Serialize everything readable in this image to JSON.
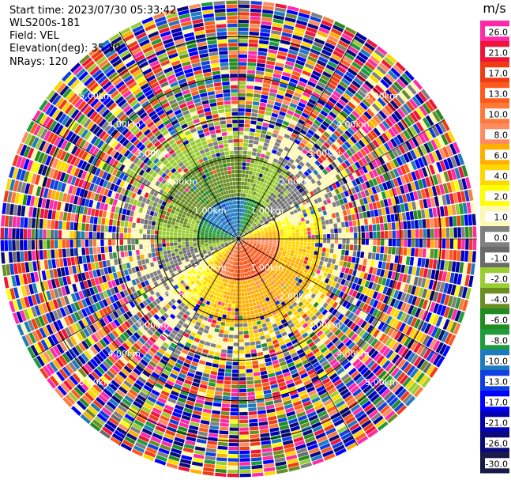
{
  "header": {
    "start_time": "Start time: 2023/07/30 05:33:42",
    "instrument": "WLS200s-181",
    "field": "Field: VEL",
    "elevation": "Elevation(deg): 35.30",
    "nrays": "NRays: 120"
  },
  "chart_data": {
    "type": "heatmap",
    "projection": "polar-ppi",
    "field": "VEL",
    "units": "m/s",
    "n_rays": 120,
    "elevation_deg": 35.3,
    "range_rings_km": [
      1,
      2,
      3,
      4,
      5
    ],
    "ring_labels": [
      "1.00km",
      "2.00km",
      "3.00km",
      "4.00km",
      "5.00km"
    ],
    "colorbar": {
      "title": "m/s",
      "ticks": [
        "26.0",
        "21.0",
        "17.0",
        "13.0",
        "10.0",
        "8.0",
        "6.0",
        "4.0",
        "2.0",
        "1.0",
        "0.0",
        "-1.0",
        "-2.0",
        "-4.0",
        "-6.0",
        "-8.0",
        "-10.0",
        "-13.0",
        "-17.0",
        "-21.0",
        "-26.0",
        "-30.0"
      ],
      "colors": [
        "#ff2aa8",
        "#f01438",
        "#f03c14",
        "#ff5a1e",
        "#ff7a3a",
        "#ff8c60",
        "#ffb000",
        "#ffd700",
        "#ffff00",
        "#fff9b0",
        "#808080",
        "#6a6a6a",
        "#9acd32",
        "#6b8e23",
        "#228b22",
        "#1e9b3a",
        "#1e7bbf",
        "#1040e0",
        "#0000ff",
        "#0000b0",
        "#0a0a7a",
        "#1a1a4a"
      ]
    },
    "pattern": {
      "near_field": "positive velocity (orange/yellow) toward south-east, negative velocity (green/blue) toward north-west",
      "far_field": "noisy multicolor"
    }
  }
}
